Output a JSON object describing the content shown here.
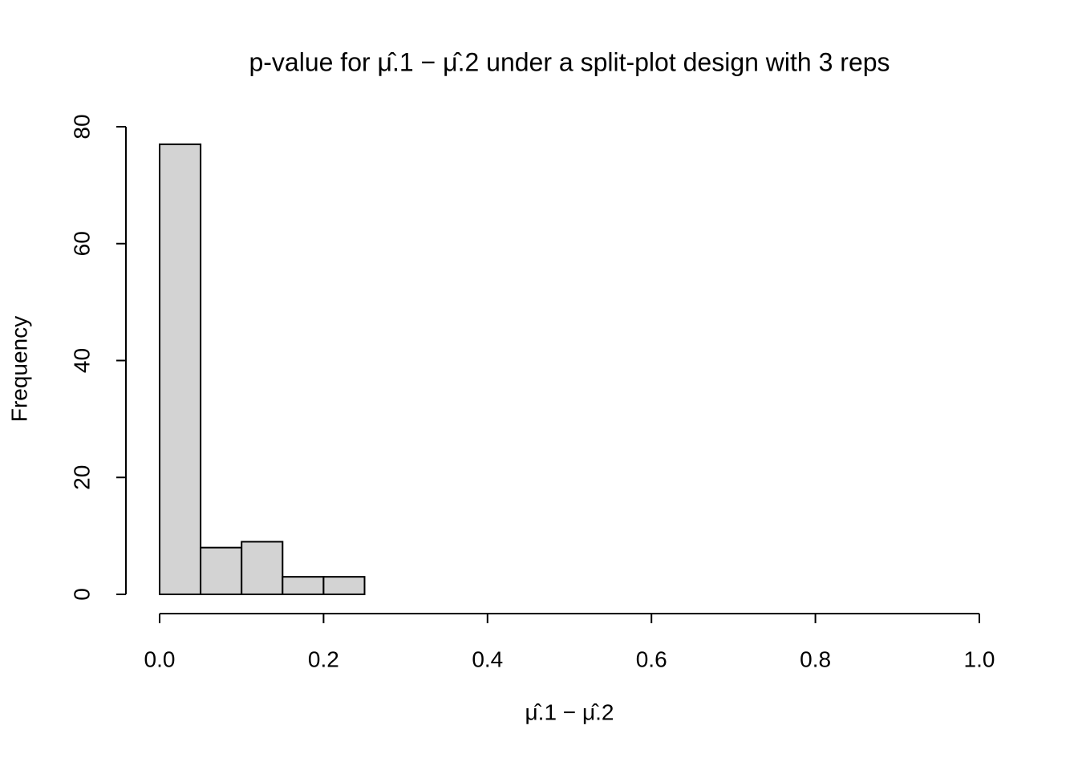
{
  "chart_data": {
    "type": "histogram",
    "title": "p-value for μ̂.1 − μ̂.2 under a split-plot design with 3 reps",
    "x_label": "μ̂.1 − μ̂.2",
    "y_label": "Frequency",
    "bins": [
      0,
      0.05,
      0.1,
      0.15,
      0.2,
      0.25
    ],
    "values": [
      77,
      8,
      9,
      3,
      3
    ],
    "color": "#d3d3d3",
    "xlim": [
      0,
      1
    ],
    "xticks": [
      {
        "value": 0,
        "label": "0.0"
      },
      0.2,
      0.4,
      0.6,
      0.8,
      {
        "value": 1,
        "label": "1.0"
      }
    ],
    "ylim": [
      0,
      80
    ],
    "yticks": [
      0,
      20,
      40,
      60,
      80
    ]
  }
}
